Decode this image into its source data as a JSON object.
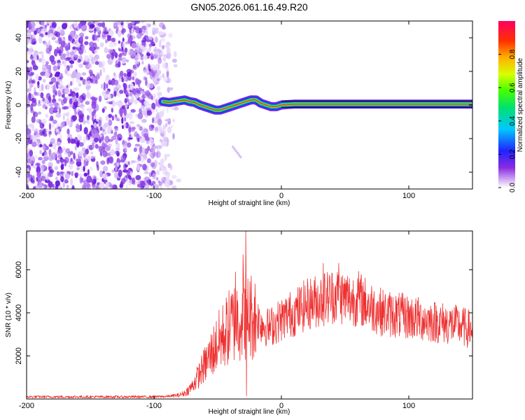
{
  "title": "GN05.2026.061.16.49.R20",
  "chart_data": [
    {
      "type": "heatmap",
      "name": "spectrogram",
      "xlabel": "Height of straight line (km)",
      "ylabel": "Frequency (Hz)",
      "xlim": [
        -200,
        150
      ],
      "ylim": [
        -50,
        50
      ],
      "xticks": [
        -200,
        -100,
        0,
        100
      ],
      "yticks": [
        -40,
        -20,
        0,
        20,
        40
      ],
      "noise_region_x": [
        -200,
        -80
      ],
      "signal_track": {
        "x": [
          -93,
          -88,
          -84,
          -80,
          -76,
          -72,
          -68,
          -64,
          -60,
          -56,
          -52,
          -48,
          -44,
          -40,
          -36,
          -32,
          -28,
          -24,
          -20,
          -16,
          -12,
          -8,
          -4,
          0,
          10,
          20,
          40,
          60,
          80,
          100,
          110,
          150
        ],
        "y": [
          2,
          1.5,
          2,
          2.5,
          3,
          2,
          1.5,
          0,
          -1,
          -2,
          -3,
          -3,
          -2,
          -1,
          0,
          1,
          2,
          3,
          3,
          1,
          0,
          -1,
          -1,
          0,
          0.5,
          0.5,
          0.5,
          0.5,
          0.5,
          0.5,
          0.5,
          0.5
        ]
      },
      "colorbar": {
        "label": "Normalized spectral amplitude",
        "range": [
          0,
          1
        ],
        "ticks": [
          "0.0",
          "0.2",
          "0.4",
          "0.6",
          "0.8"
        ]
      }
    },
    {
      "type": "line",
      "name": "snr",
      "xlabel": "Height of straight line (km)",
      "ylabel": "SNR (10 * v/v)",
      "xlim": [
        -200,
        150
      ],
      "ylim": [
        0,
        7800
      ],
      "xticks": [
        -200,
        -100,
        0,
        100
      ],
      "yticks": [
        2000,
        4000,
        6000
      ],
      "color": "#ee3030",
      "envelope": {
        "x": [
          -200,
          -100,
          -90,
          -80,
          -75,
          -70,
          -65,
          -60,
          -55,
          -50,
          -45,
          -40,
          -35,
          -30,
          -25,
          -20,
          -15,
          -10,
          -5,
          0,
          5,
          10,
          15,
          20,
          25,
          30,
          35,
          40,
          45,
          50,
          55,
          60,
          65,
          70,
          80,
          90,
          100,
          110,
          120,
          130,
          140,
          150
        ],
        "y": [
          100,
          100,
          120,
          180,
          300,
          600,
          1100,
          1600,
          2100,
          2600,
          3000,
          3400,
          3700,
          3900,
          3900,
          3800,
          3500,
          3300,
          3500,
          3700,
          3900,
          4000,
          4200,
          4400,
          4500,
          4600,
          4700,
          4800,
          4800,
          4700,
          4600,
          4700,
          4500,
          4300,
          4000,
          3900,
          3800,
          3700,
          3600,
          3500,
          3400,
          3200
        ]
      },
      "spikes": [
        {
          "x": -36,
          "y": 5900
        },
        {
          "x": -30,
          "y": 6700
        },
        {
          "x": -28,
          "y": 7800
        },
        {
          "x": 33,
          "y": 6300
        },
        {
          "x": 45,
          "y": 6300
        },
        {
          "x": 52,
          "y": 5700
        }
      ]
    }
  ]
}
